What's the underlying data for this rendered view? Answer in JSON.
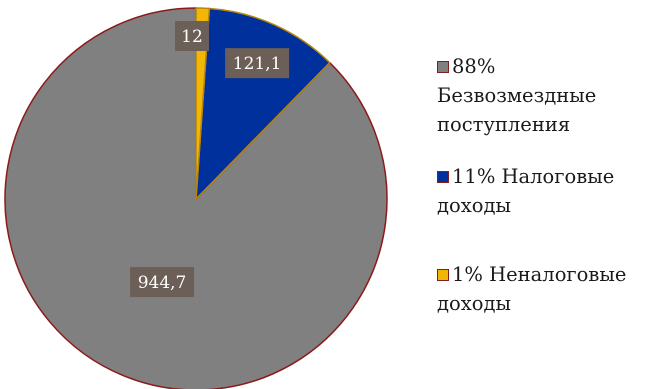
{
  "chart_data": {
    "type": "pie",
    "title": "",
    "categories": [
      "Безвозмездные поступления",
      "Налоговые доходы",
      "Неналоговые доходы"
    ],
    "values": [
      944.7,
      121.1,
      12
    ],
    "value_labels": [
      "944,7",
      "121,1",
      "12"
    ],
    "percent_labels": [
      "88%",
      "11%",
      "1%"
    ],
    "legend_entries": [
      "88% Безвозмездные поступления",
      "11% Налоговые доходы",
      "1% Неналоговые доходы"
    ],
    "colors": [
      "#808080",
      "#00309c",
      "#f2b705"
    ],
    "slice_border_colors": [
      "#8b1a1a",
      "#b8860b",
      "#b8860b"
    ],
    "label_box_color": "#6b5f57",
    "legend_position": "right"
  },
  "legend": {
    "items": [
      {
        "text": "88% Безвозмездные поступления",
        "color": "#808080"
      },
      {
        "text": "11% Налоговые доходы",
        "color": "#00309c"
      },
      {
        "text": "1% Неналоговые доходы",
        "color": "#f2b705"
      }
    ]
  }
}
